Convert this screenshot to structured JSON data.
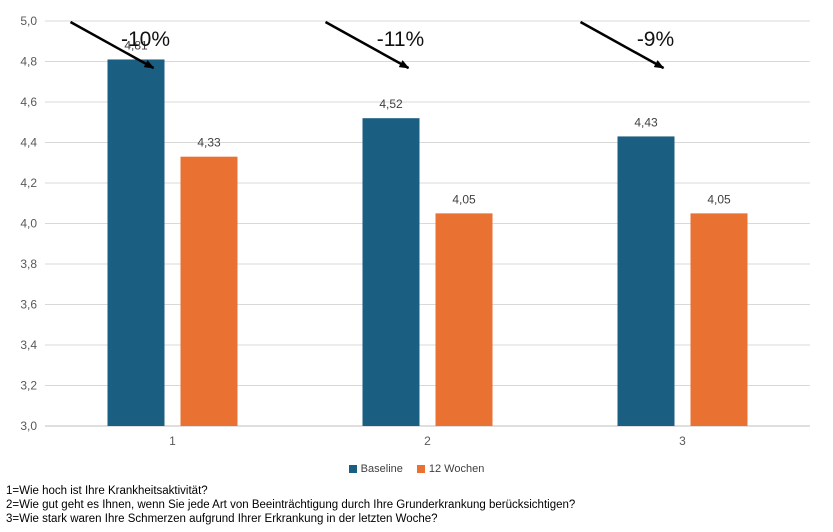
{
  "chart_data": {
    "type": "bar",
    "categories": [
      "1",
      "2",
      "3"
    ],
    "series": [
      {
        "name": "Baseline",
        "color": "#1a5e82",
        "values": [
          4.81,
          4.52,
          4.43
        ],
        "labels": [
          "4,81",
          "4,52",
          "4,43"
        ]
      },
      {
        "name": "12 Wochen",
        "color": "#e97132",
        "values": [
          4.33,
          4.05,
          4.05
        ],
        "labels": [
          "4,33",
          "4,05",
          "4,05"
        ]
      }
    ],
    "ylim": [
      3.0,
      5.0
    ],
    "yticks": [
      "3,0",
      "3,2",
      "3,4",
      "3,6",
      "3,8",
      "4,0",
      "4,2",
      "4,4",
      "4,6",
      "4,8",
      "5,0"
    ],
    "grid": true,
    "legend_position": "bottom",
    "annotations": [
      "-10%",
      "-11%",
      "-9%"
    ],
    "title": "",
    "xlabel": "",
    "ylabel": ""
  },
  "legend": {
    "baseline_label": "Baseline",
    "week12_label": "12 Wochen",
    "baseline_color": "#1a5e82",
    "week12_color": "#e97132"
  },
  "notes": [
    "1=Wie hoch ist Ihre Krankheitsaktivität?",
    "2=Wie gut geht es Ihnen, wenn Sie jede Art von Beeinträchtigung durch Ihre Grunderkrankung berücksichtigen?",
    "3=Wie stark waren Ihre Schmerzen aufgrund Ihrer Erkrankung in der letzten Woche?"
  ]
}
